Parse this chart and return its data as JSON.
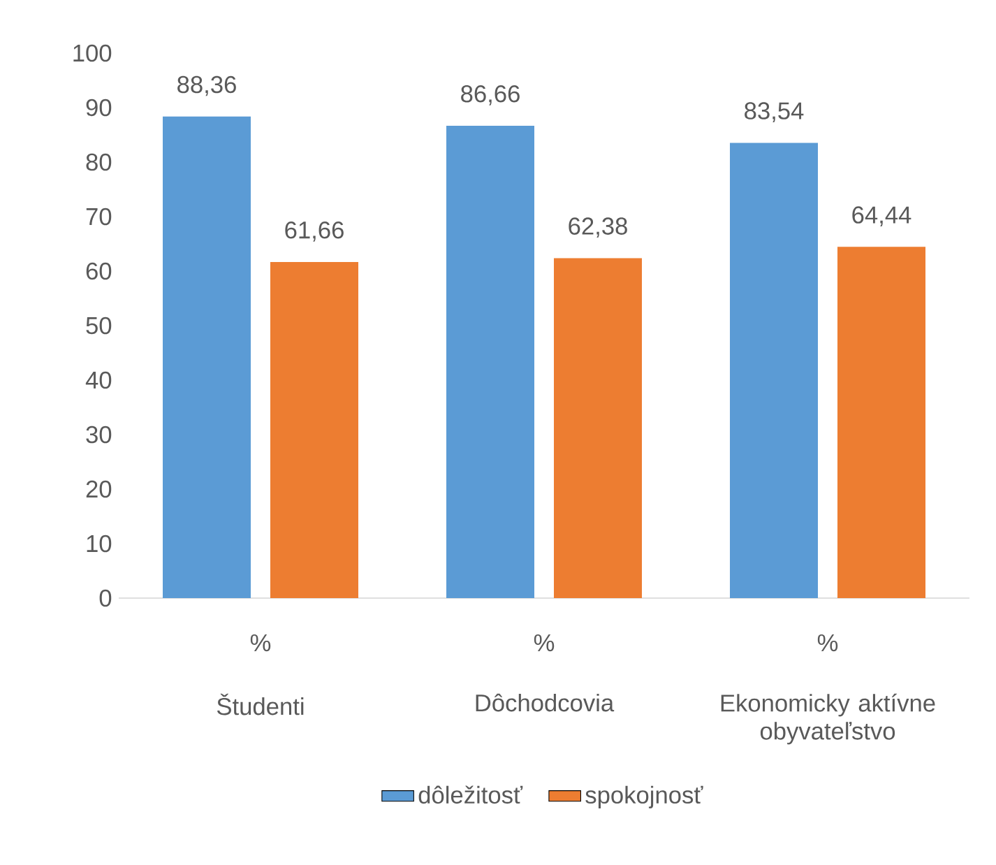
{
  "chart_data": {
    "type": "bar",
    "categories": [
      "Študenti",
      "Dôchodcovia",
      "Ekonomicky aktívne obyvateľstvo"
    ],
    "series": [
      {
        "name": "dôležitosť",
        "color": "#5b9bd5",
        "values": [
          88.36,
          86.66,
          83.54
        ],
        "value_labels": [
          "88,36",
          "86,66",
          "83,54"
        ]
      },
      {
        "name": "spokojnosť",
        "color": "#ed7d31",
        "values": [
          61.66,
          62.38,
          64.44
        ],
        "value_labels": [
          "61,66",
          "62,38",
          "64,44"
        ]
      }
    ],
    "annotations": [
      "%",
      "%",
      "%"
    ],
    "ylim": [
      0,
      100
    ],
    "yticks": [
      0,
      10,
      20,
      30,
      40,
      50,
      60,
      70,
      80,
      90,
      100
    ],
    "grid": false,
    "legend": "bottom"
  }
}
